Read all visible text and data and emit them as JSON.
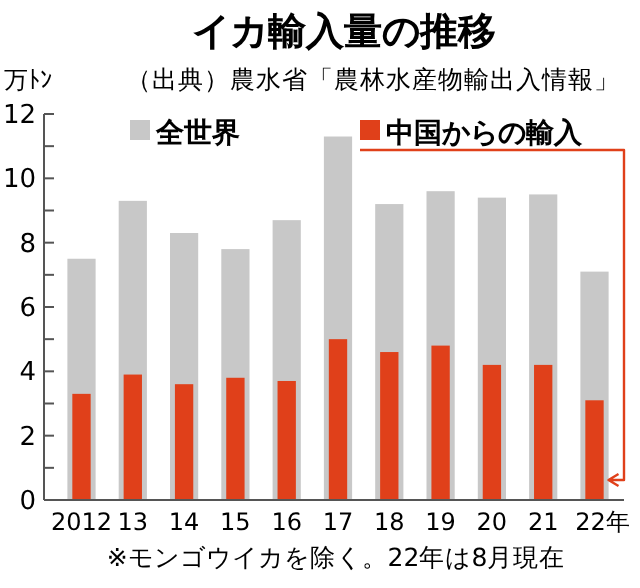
{
  "chart_data": {
    "type": "bar",
    "title": "イカ輸入量の推移",
    "ylabel": "万ﾄﾝ",
    "annotations": [
      "（出典）農水省「農林水産物輸出入情報」",
      "※モンゴウイカを除く。22年は8月現在"
    ],
    "categories": [
      "2012",
      "13",
      "14",
      "15",
      "16",
      "17",
      "18",
      "19",
      "20",
      "21",
      "22年"
    ],
    "series": [
      {
        "name": "全世界",
        "color": "#c8c8c8",
        "values": [
          7.5,
          9.3,
          8.3,
          7.8,
          8.7,
          11.3,
          9.2,
          9.6,
          9.4,
          9.5,
          7.1
        ]
      },
      {
        "name": "中国からの輸入",
        "color": "#e0401a",
        "values": [
          3.3,
          3.9,
          3.6,
          3.8,
          3.7,
          5.0,
          4.6,
          4.8,
          4.2,
          4.2,
          3.1
        ]
      }
    ],
    "ylim": [
      0,
      12
    ],
    "yticks": [
      0,
      {
        "value": 1,
        "label": null
      },
      2,
      {
        "value": 3,
        "label": null
      },
      4,
      {
        "value": 5,
        "label": null
      },
      6,
      {
        "value": 7,
        "label": null
      },
      8,
      {
        "value": 9,
        "label": null
      },
      10,
      {
        "value": 11,
        "label": null
      },
      12
    ],
    "legend": "top",
    "grid": false
  }
}
